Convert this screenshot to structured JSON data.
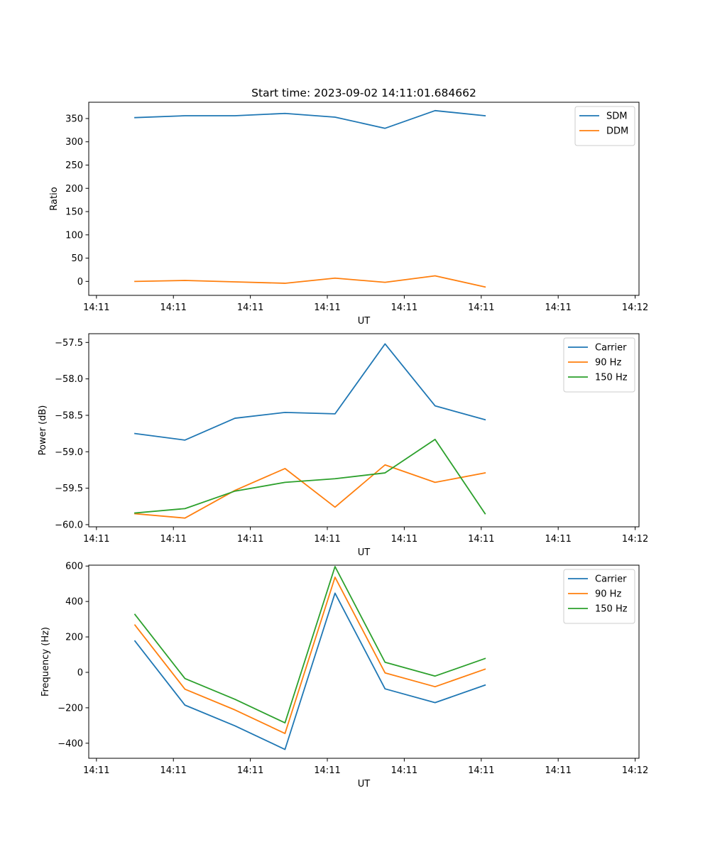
{
  "figure": {
    "title": "Start time: 2023-09-02 14:11:01.684662",
    "colors": {
      "blue": "#1f77b4",
      "orange": "#ff7f0e",
      "green": "#2ca02c"
    }
  },
  "chart_data": [
    {
      "type": "line",
      "title": "Start time: 2023-09-02 14:11:01.684662",
      "xlabel": "UT",
      "ylabel": "Ratio",
      "x_ticks": [
        "14:11",
        "14:11",
        "14:11",
        "14:11",
        "14:11",
        "14:11",
        "14:11",
        "14:12"
      ],
      "x_tick_values": [
        0,
        1,
        2,
        3,
        4,
        5,
        6,
        7
      ],
      "xlim": [
        -0.1,
        7.05
      ],
      "x": [
        0.5,
        1.15,
        1.8,
        2.45,
        3.1,
        3.75,
        4.4,
        5.05
      ],
      "y_ticks": [
        0,
        50,
        100,
        150,
        200,
        250,
        300,
        350
      ],
      "ylim": [
        -30,
        385
      ],
      "legend_position": "top-right",
      "series": [
        {
          "name": "SDM",
          "color": "#1f77b4",
          "values": [
            352,
            356,
            356,
            361,
            353,
            329,
            367,
            356
          ]
        },
        {
          "name": "DDM",
          "color": "#ff7f0e",
          "values": [
            0,
            2,
            -1,
            -4,
            7,
            -2,
            12,
            -12
          ]
        }
      ]
    },
    {
      "type": "line",
      "title": "",
      "xlabel": "UT",
      "ylabel": "Power (dB)",
      "x_ticks": [
        "14:11",
        "14:11",
        "14:11",
        "14:11",
        "14:11",
        "14:11",
        "14:11",
        "14:12"
      ],
      "x_tick_values": [
        0,
        1,
        2,
        3,
        4,
        5,
        6,
        7
      ],
      "xlim": [
        -0.1,
        7.05
      ],
      "x": [
        0.5,
        1.15,
        1.8,
        2.45,
        3.1,
        3.75,
        4.4,
        5.05
      ],
      "y_ticks": [
        -60.0,
        -59.5,
        -59.0,
        -58.5,
        -58.0,
        -57.5
      ],
      "y_tick_labels": [
        "−60.0",
        "−59.5",
        "−59.0",
        "−58.5",
        "−58.0",
        "−57.5"
      ],
      "ylim": [
        -60.03,
        -57.38
      ],
      "legend_position": "top-right",
      "series": [
        {
          "name": "Carrier",
          "color": "#1f77b4",
          "values": [
            -58.75,
            -58.84,
            -58.54,
            -58.46,
            -58.48,
            -57.52,
            -58.37,
            -58.56
          ]
        },
        {
          "name": "90 Hz",
          "color": "#ff7f0e",
          "values": [
            -59.85,
            -59.91,
            -59.53,
            -59.23,
            -59.76,
            -59.18,
            -59.42,
            -59.29
          ]
        },
        {
          "name": "150 Hz",
          "color": "#2ca02c",
          "values": [
            -59.84,
            -59.78,
            -59.54,
            -59.42,
            -59.37,
            -59.29,
            -58.83,
            -59.85
          ]
        }
      ]
    },
    {
      "type": "line",
      "title": "",
      "xlabel": "UT",
      "ylabel": "Frequency (Hz)",
      "x_ticks": [
        "14:11",
        "14:11",
        "14:11",
        "14:11",
        "14:11",
        "14:11",
        "14:11",
        "14:12"
      ],
      "x_tick_values": [
        0,
        1,
        2,
        3,
        4,
        5,
        6,
        7
      ],
      "xlim": [
        -0.1,
        7.05
      ],
      "x": [
        0.5,
        1.15,
        1.8,
        2.45,
        3.1,
        3.75,
        4.4,
        5.05
      ],
      "y_ticks": [
        -400,
        -200,
        0,
        200,
        400,
        600
      ],
      "y_tick_labels": [
        "−400",
        "−200",
        "0",
        "200",
        "400",
        "600"
      ],
      "ylim": [
        -485,
        605
      ],
      "legend_position": "top-right",
      "series": [
        {
          "name": "Carrier",
          "color": "#1f77b4",
          "values": [
            177,
            -185,
            -302,
            -435,
            447,
            -93,
            -171,
            -72
          ]
        },
        {
          "name": "90 Hz",
          "color": "#ff7f0e",
          "values": [
            267,
            -95,
            -212,
            -345,
            537,
            -3,
            -81,
            18
          ]
        },
        {
          "name": "150 Hz",
          "color": "#2ca02c",
          "values": [
            327,
            -35,
            -152,
            -285,
            597,
            57,
            -21,
            78
          ]
        }
      ]
    }
  ]
}
